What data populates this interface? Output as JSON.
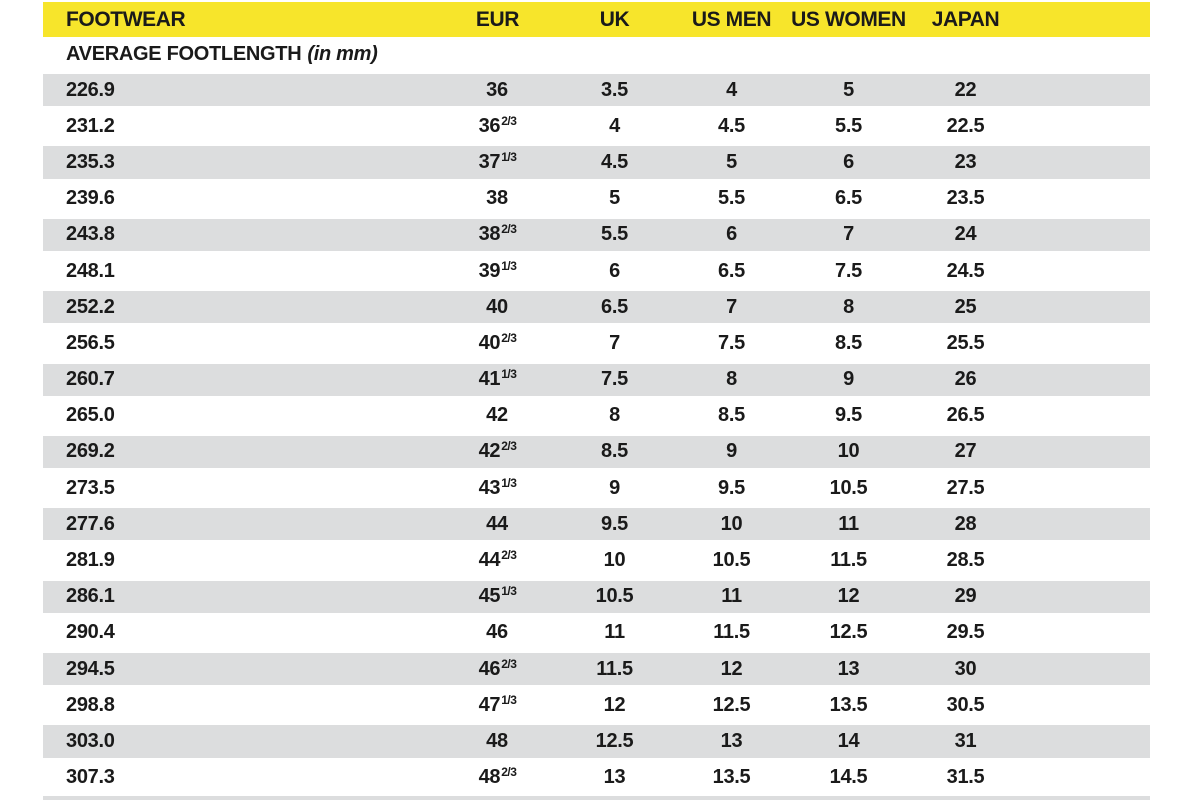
{
  "colors": {
    "header_bg": "#F7E52B",
    "alt_row_bg": "#DCDDDE",
    "row_bg": "#FFFFFF",
    "text": "#1A1A1A"
  },
  "header": {
    "columns": [
      "FOOTWEAR",
      "EUR",
      "UK",
      "US MEN",
      "US WOMEN",
      "JAPAN"
    ]
  },
  "subtitle": {
    "label": "AVERAGE FOOTLENGTH",
    "unit_note": "(in mm)"
  },
  "rows": [
    {
      "avg_footlength": "226.9",
      "eur": "36",
      "eur_frac": "",
      "uk": "3.5",
      "us_men": "4",
      "us_women": "5",
      "japan": "22"
    },
    {
      "avg_footlength": "231.2",
      "eur": "36",
      "eur_frac": "2/3",
      "uk": "4",
      "us_men": "4.5",
      "us_women": "5.5",
      "japan": "22.5"
    },
    {
      "avg_footlength": "235.3",
      "eur": "37",
      "eur_frac": "1/3",
      "uk": "4.5",
      "us_men": "5",
      "us_women": "6",
      "japan": "23"
    },
    {
      "avg_footlength": "239.6",
      "eur": "38",
      "eur_frac": "",
      "uk": "5",
      "us_men": "5.5",
      "us_women": "6.5",
      "japan": "23.5"
    },
    {
      "avg_footlength": "243.8",
      "eur": "38",
      "eur_frac": "2/3",
      "uk": "5.5",
      "us_men": "6",
      "us_women": "7",
      "japan": "24"
    },
    {
      "avg_footlength": "248.1",
      "eur": "39",
      "eur_frac": "1/3",
      "uk": "6",
      "us_men": "6.5",
      "us_women": "7.5",
      "japan": "24.5"
    },
    {
      "avg_footlength": "252.2",
      "eur": "40",
      "eur_frac": "",
      "uk": "6.5",
      "us_men": "7",
      "us_women": "8",
      "japan": "25"
    },
    {
      "avg_footlength": "256.5",
      "eur": "40",
      "eur_frac": "2/3",
      "uk": "7",
      "us_men": "7.5",
      "us_women": "8.5",
      "japan": "25.5"
    },
    {
      "avg_footlength": "260.7",
      "eur": "41",
      "eur_frac": "1/3",
      "uk": "7.5",
      "us_men": "8",
      "us_women": "9",
      "japan": "26"
    },
    {
      "avg_footlength": "265.0",
      "eur": "42",
      "eur_frac": "",
      "uk": "8",
      "us_men": "8.5",
      "us_women": "9.5",
      "japan": "26.5"
    },
    {
      "avg_footlength": "269.2",
      "eur": "42",
      "eur_frac": "2/3",
      "uk": "8.5",
      "us_men": "9",
      "us_women": "10",
      "japan": "27"
    },
    {
      "avg_footlength": "273.5",
      "eur": "43",
      "eur_frac": "1/3",
      "uk": "9",
      "us_men": "9.5",
      "us_women": "10.5",
      "japan": "27.5"
    },
    {
      "avg_footlength": "277.6",
      "eur": "44",
      "eur_frac": "",
      "uk": "9.5",
      "us_men": "10",
      "us_women": "11",
      "japan": "28"
    },
    {
      "avg_footlength": "281.9",
      "eur": "44",
      "eur_frac": "2/3",
      "uk": "10",
      "us_men": "10.5",
      "us_women": "11.5",
      "japan": "28.5"
    },
    {
      "avg_footlength": "286.1",
      "eur": "45",
      "eur_frac": "1/3",
      "uk": "10.5",
      "us_men": "11",
      "us_women": "12",
      "japan": "29"
    },
    {
      "avg_footlength": "290.4",
      "eur": "46",
      "eur_frac": "",
      "uk": "11",
      "us_men": "11.5",
      "us_women": "12.5",
      "japan": "29.5"
    },
    {
      "avg_footlength": "294.5",
      "eur": "46",
      "eur_frac": "2/3",
      "uk": "11.5",
      "us_men": "12",
      "us_women": "13",
      "japan": "30"
    },
    {
      "avg_footlength": "298.8",
      "eur": "47",
      "eur_frac": "1/3",
      "uk": "12",
      "us_men": "12.5",
      "us_women": "13.5",
      "japan": "30.5"
    },
    {
      "avg_footlength": "303.0",
      "eur": "48",
      "eur_frac": "",
      "uk": "12.5",
      "us_men": "13",
      "us_women": "14",
      "japan": "31"
    },
    {
      "avg_footlength": "307.3",
      "eur": "48",
      "eur_frac": "2/3",
      "uk": "13",
      "us_men": "13.5",
      "us_women": "14.5",
      "japan": "31.5"
    }
  ]
}
